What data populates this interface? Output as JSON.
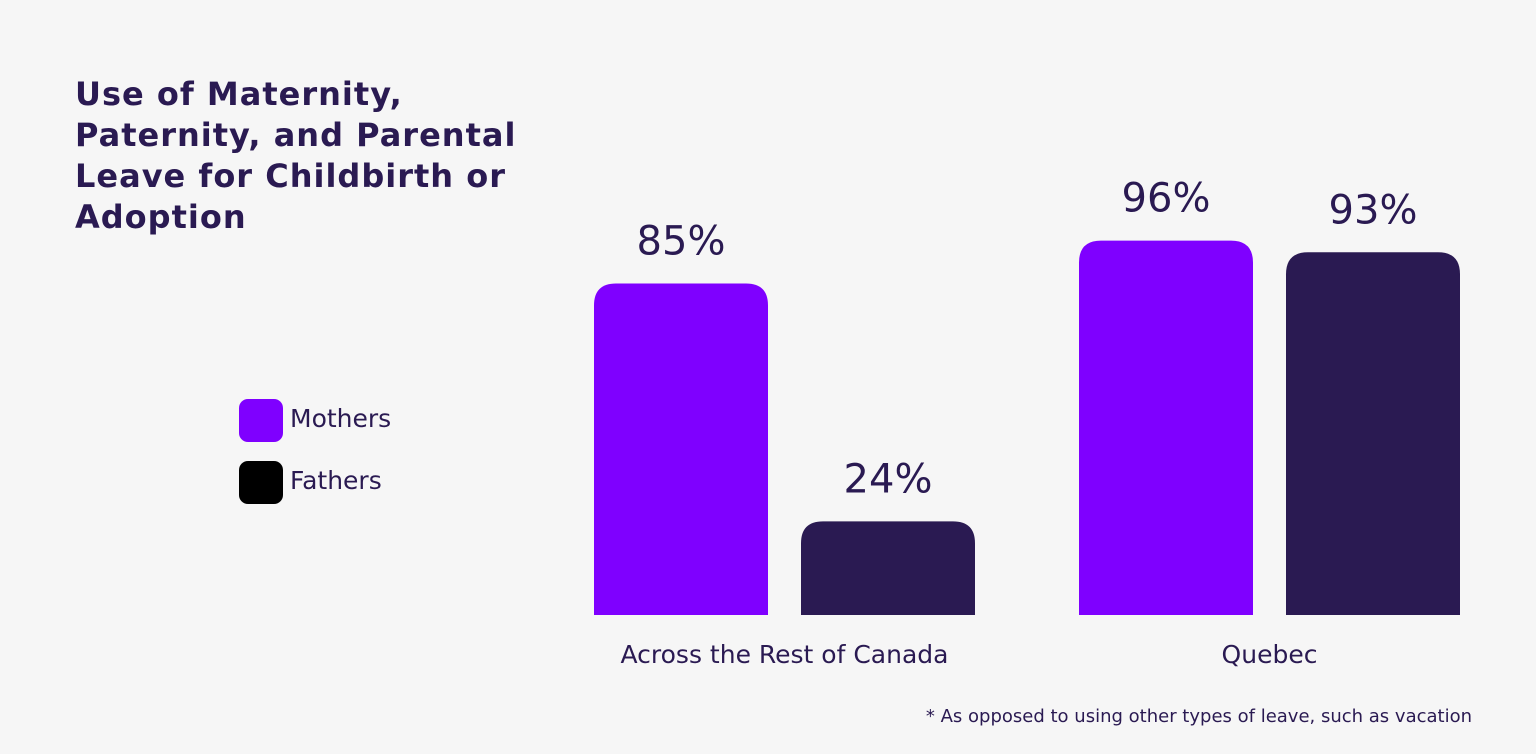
{
  "chart_data": {
    "type": "bar",
    "title": "Use of Maternity, Paternity, and Parental Leave for Childbirth or Adoption",
    "categories": [
      "Across the Rest of Canada",
      "Quebec"
    ],
    "series": [
      {
        "name": "Mothers",
        "color": "#7f00ff",
        "legend_color": "#7f00ff",
        "values": [
          85,
          96
        ],
        "value_labels": [
          "85%",
          "96%"
        ]
      },
      {
        "name": "Fathers",
        "color": "#2a1a52",
        "legend_color": "#000000",
        "values": [
          24,
          93
        ],
        "value_labels": [
          "24%",
          "93%"
        ]
      }
    ],
    "ylim": [
      0,
      100
    ],
    "footnote": "* As opposed to using other types of leave, such as vacation"
  }
}
